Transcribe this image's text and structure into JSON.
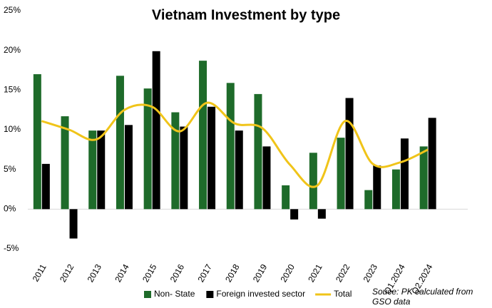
{
  "chart_data": {
    "type": "bar_line",
    "title": "Vietnam Investment by type",
    "categories": [
      "2011",
      "2012",
      "2013",
      "2014",
      "2015",
      "2016",
      "2017",
      "2018",
      "2019",
      "2020",
      "2021",
      "2022",
      "2023",
      "Q1.2024",
      "Q2.2024"
    ],
    "series": [
      {
        "name": "Non- State",
        "type": "bar",
        "color": "#1e6b2a",
        "values": [
          17.0,
          11.7,
          9.9,
          16.8,
          15.2,
          12.2,
          18.7,
          15.9,
          14.5,
          3.0,
          7.1,
          9.0,
          2.4,
          5.0,
          7.9
        ]
      },
      {
        "name": "Foreign invested sector",
        "type": "bar",
        "color": "#000000",
        "values": [
          5.7,
          -3.7,
          9.9,
          10.6,
          19.9,
          10.4,
          12.9,
          9.9,
          7.9,
          -1.3,
          -1.2,
          14.0,
          5.5,
          8.9,
          11.5
        ]
      },
      {
        "name": "Total",
        "type": "line",
        "color": "#f0c419",
        "values": [
          11.1,
          10.0,
          8.8,
          12.5,
          12.9,
          9.8,
          13.4,
          10.8,
          10.2,
          5.6,
          3.0,
          11.1,
          5.7,
          5.9,
          7.5
        ]
      }
    ],
    "ylim": [
      -5,
      25
    ],
    "yticks": [
      {
        "value": -5,
        "label": "-5%"
      },
      {
        "value": 0,
        "label": "0%"
      },
      {
        "value": 5,
        "label": "5%"
      },
      {
        "value": 10,
        "label": "10%"
      },
      {
        "value": 15,
        "label": "15%"
      },
      {
        "value": 20,
        "label": "20%"
      },
      {
        "value": 25,
        "label": "25%"
      }
    ],
    "annotation": "Souce: PK calculated from GSO data"
  }
}
